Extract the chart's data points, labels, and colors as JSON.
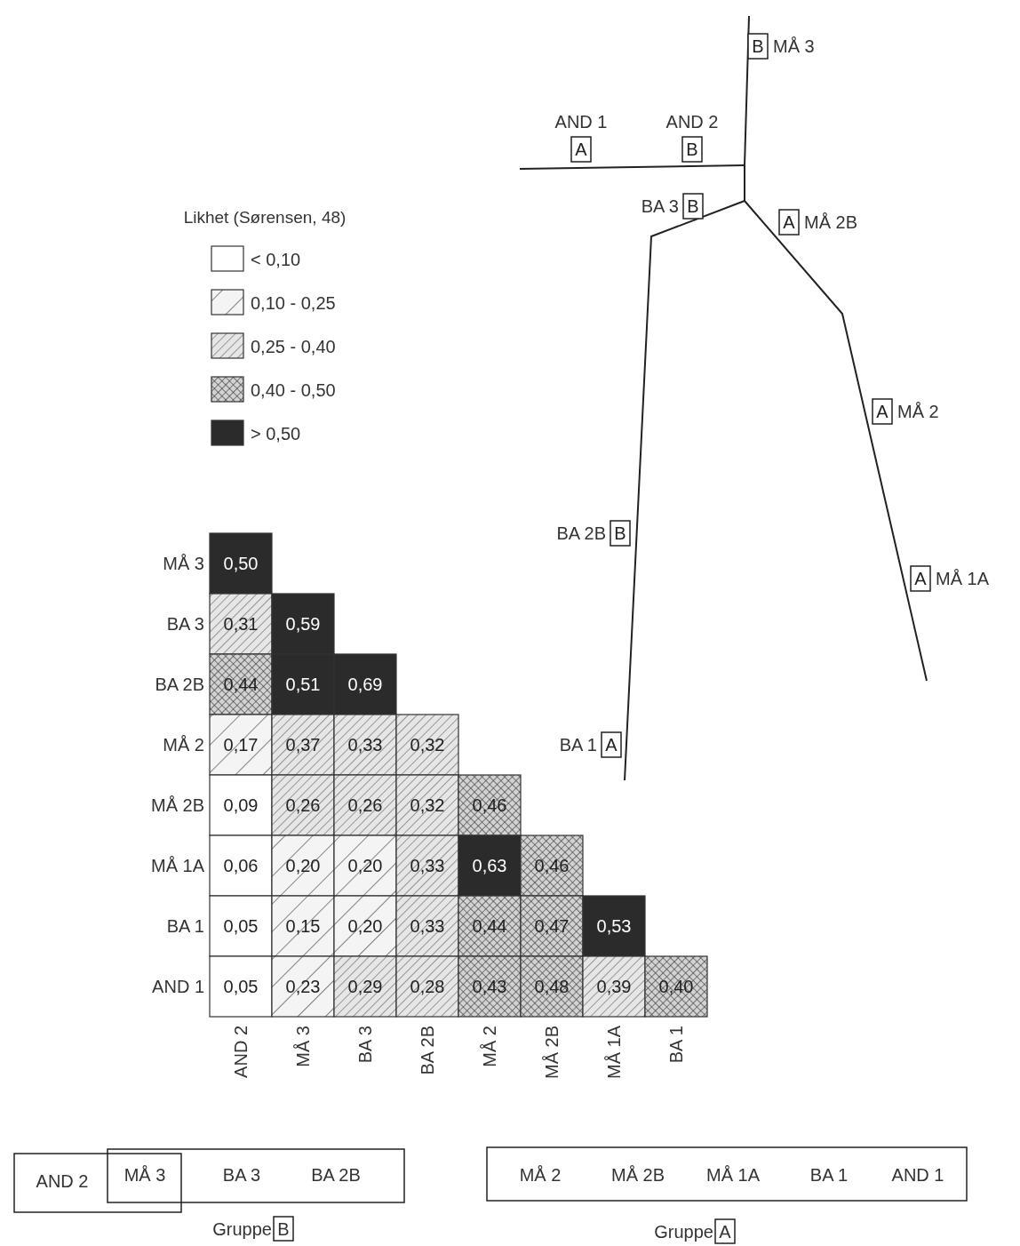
{
  "chart_data": [
    {
      "type": "heatmap",
      "legend_title": "Likhet (Sørensen, 48)",
      "categories": [
        "AND 2",
        "MÅ 3",
        "BA 3",
        "BA 2B",
        "MÅ 2",
        "MÅ 2B",
        "MÅ 1A",
        "BA 1"
      ],
      "y_categories": [
        "MÅ 3",
        "BA 3",
        "BA 2B",
        "MÅ 2",
        "MÅ 2B",
        "MÅ 1A",
        "BA 1",
        "AND 1"
      ],
      "cells": [
        [
          0.5,
          null,
          null,
          null,
          null,
          null,
          null,
          null
        ],
        [
          0.31,
          0.59,
          null,
          null,
          null,
          null,
          null,
          null
        ],
        [
          0.44,
          0.51,
          0.69,
          null,
          null,
          null,
          null,
          null
        ],
        [
          0.17,
          0.37,
          0.33,
          0.32,
          null,
          null,
          null,
          null
        ],
        [
          0.09,
          0.26,
          0.26,
          0.32,
          0.46,
          null,
          null,
          null
        ],
        [
          0.06,
          0.2,
          0.2,
          0.33,
          0.63,
          0.46,
          null,
          null
        ],
        [
          0.05,
          0.15,
          0.2,
          0.33,
          0.44,
          0.47,
          0.53,
          null
        ],
        [
          0.05,
          0.23,
          0.29,
          0.28,
          0.43,
          0.48,
          0.39,
          0.4
        ]
      ],
      "cell_labels": [
        [
          "0,50",
          null,
          null,
          null,
          null,
          null,
          null,
          null
        ],
        [
          "0,31",
          "0,59",
          null,
          null,
          null,
          null,
          null,
          null
        ],
        [
          "0,44",
          "0,51",
          "0,69",
          null,
          null,
          null,
          null,
          null
        ],
        [
          "0,17",
          "0,37",
          "0,33",
          "0,32",
          null,
          null,
          null,
          null
        ],
        [
          "0,09",
          "0,26",
          "0,26",
          "0,32",
          "0,46",
          null,
          null,
          null
        ],
        [
          "0,06",
          "0,20",
          "0,20",
          "0,33",
          "0,63",
          "0,46",
          null,
          null
        ],
        [
          "0,05",
          "0,15",
          "0,20",
          "0,33",
          "0,44",
          "0,47",
          "0,53",
          null
        ],
        [
          "0,05",
          "0,23",
          "0,29",
          "0,28",
          "0,43",
          "0,48",
          "0,39",
          "0,40"
        ]
      ],
      "colors": [
        "#ffffff",
        "#f4f4f4",
        "#e6e6e6",
        "#d2d2d2",
        "#2b2b2b"
      ],
      "annotations": [
        "< 0,10",
        "0,10 - 0,25",
        "0,25 - 0,40",
        "0,40 - 0,50",
        "> 0,50"
      ]
    },
    {
      "type": "other",
      "categories": [
        "MÅ 3",
        "AND 1",
        "AND 2",
        "BA 3",
        "MÅ 2B",
        "MÅ 2",
        "BA 2B",
        "MÅ 1A",
        "BA 1"
      ],
      "annotations": [
        "B",
        "A",
        "B",
        "B",
        "A",
        "A",
        "B",
        "A",
        "A"
      ]
    },
    {
      "type": "other",
      "title": "Gruppe",
      "subtitle": "B",
      "categories": [
        "AND 2",
        "MÅ 3",
        "BA 3",
        "BA 2B"
      ]
    },
    {
      "type": "other",
      "title": "Gruppe",
      "subtitle": "A",
      "categories": [
        "MÅ 2",
        "MÅ 2B",
        "MÅ 1A",
        "BA 1",
        "AND 1"
      ]
    }
  ]
}
